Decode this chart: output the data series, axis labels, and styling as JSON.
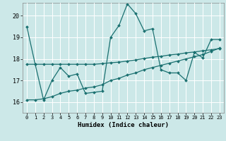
{
  "xlabel": "Humidex (Indice chaleur)",
  "bg_color": "#cce8e8",
  "line_color": "#1a7070",
  "grid_color": "#ffffff",
  "xlim": [
    -0.5,
    23.5
  ],
  "ylim": [
    15.5,
    20.6
  ],
  "yticks": [
    16,
    17,
    18,
    19,
    20
  ],
  "xticks": [
    0,
    1,
    2,
    3,
    4,
    5,
    6,
    7,
    8,
    9,
    10,
    11,
    12,
    13,
    14,
    15,
    16,
    17,
    18,
    19,
    20,
    21,
    22,
    23
  ],
  "line1_y": [
    19.5,
    17.75,
    16.1,
    17.0,
    17.6,
    17.2,
    17.3,
    16.4,
    16.45,
    16.5,
    19.0,
    19.55,
    20.55,
    20.1,
    19.3,
    19.4,
    17.5,
    17.35,
    17.35,
    17.0,
    18.3,
    18.05,
    18.9,
    18.9
  ],
  "line2_y": [
    16.1,
    16.1,
    16.15,
    16.25,
    16.4,
    16.5,
    16.55,
    16.65,
    16.7,
    16.8,
    17.0,
    17.1,
    17.25,
    17.35,
    17.5,
    17.6,
    17.7,
    17.8,
    17.9,
    18.0,
    18.1,
    18.2,
    18.35,
    18.5
  ],
  "line3_y": [
    17.75,
    17.75,
    17.75,
    17.75,
    17.75,
    17.75,
    17.75,
    17.75,
    17.75,
    17.78,
    17.82,
    17.85,
    17.9,
    17.95,
    18.02,
    18.08,
    18.12,
    18.18,
    18.22,
    18.28,
    18.32,
    18.38,
    18.42,
    18.48
  ]
}
